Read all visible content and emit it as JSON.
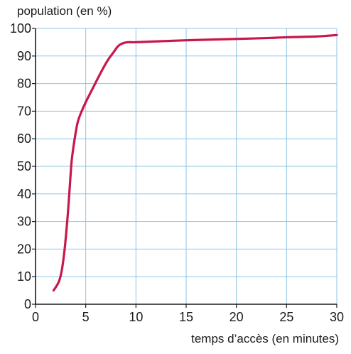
{
  "chart_data": {
    "type": "line",
    "ylabel": "population (en %)",
    "xlabel": "temps d’accès (en minutes)",
    "xlim": [
      0,
      30
    ],
    "ylim": [
      0,
      100
    ],
    "x_ticks": [
      "0",
      "5",
      "10",
      "15",
      "20",
      "25",
      "30"
    ],
    "y_ticks": [
      "0",
      "10",
      "20",
      "30",
      "40",
      "50",
      "60",
      "70",
      "80",
      "90",
      "100"
    ],
    "grid": true,
    "series": [
      {
        "color": "#c8174a",
        "points": [
          [
            1.8,
            5
          ],
          [
            2.3,
            8
          ],
          [
            2.6,
            12
          ],
          [
            2.9,
            20
          ],
          [
            3.2,
            32
          ],
          [
            3.4,
            42
          ],
          [
            3.6,
            52
          ],
          [
            3.9,
            60
          ],
          [
            4.2,
            66
          ],
          [
            4.6,
            70
          ],
          [
            5.1,
            74
          ],
          [
            5.8,
            79
          ],
          [
            6.5,
            84
          ],
          [
            7.2,
            88.5
          ],
          [
            7.8,
            91.5
          ],
          [
            8.2,
            93.5
          ],
          [
            8.6,
            94.5
          ],
          [
            9.2,
            95
          ],
          [
            10,
            95
          ],
          [
            12,
            95.3
          ],
          [
            15,
            95.7
          ],
          [
            18,
            96
          ],
          [
            20,
            96.2
          ],
          [
            23,
            96.5
          ],
          [
            25,
            96.8
          ],
          [
            28,
            97.1
          ],
          [
            30,
            97.6
          ]
        ]
      }
    ],
    "colors": {
      "line": "#c8174a",
      "grid": "#8ec3e3",
      "axis": "#1a1a1a"
    }
  }
}
